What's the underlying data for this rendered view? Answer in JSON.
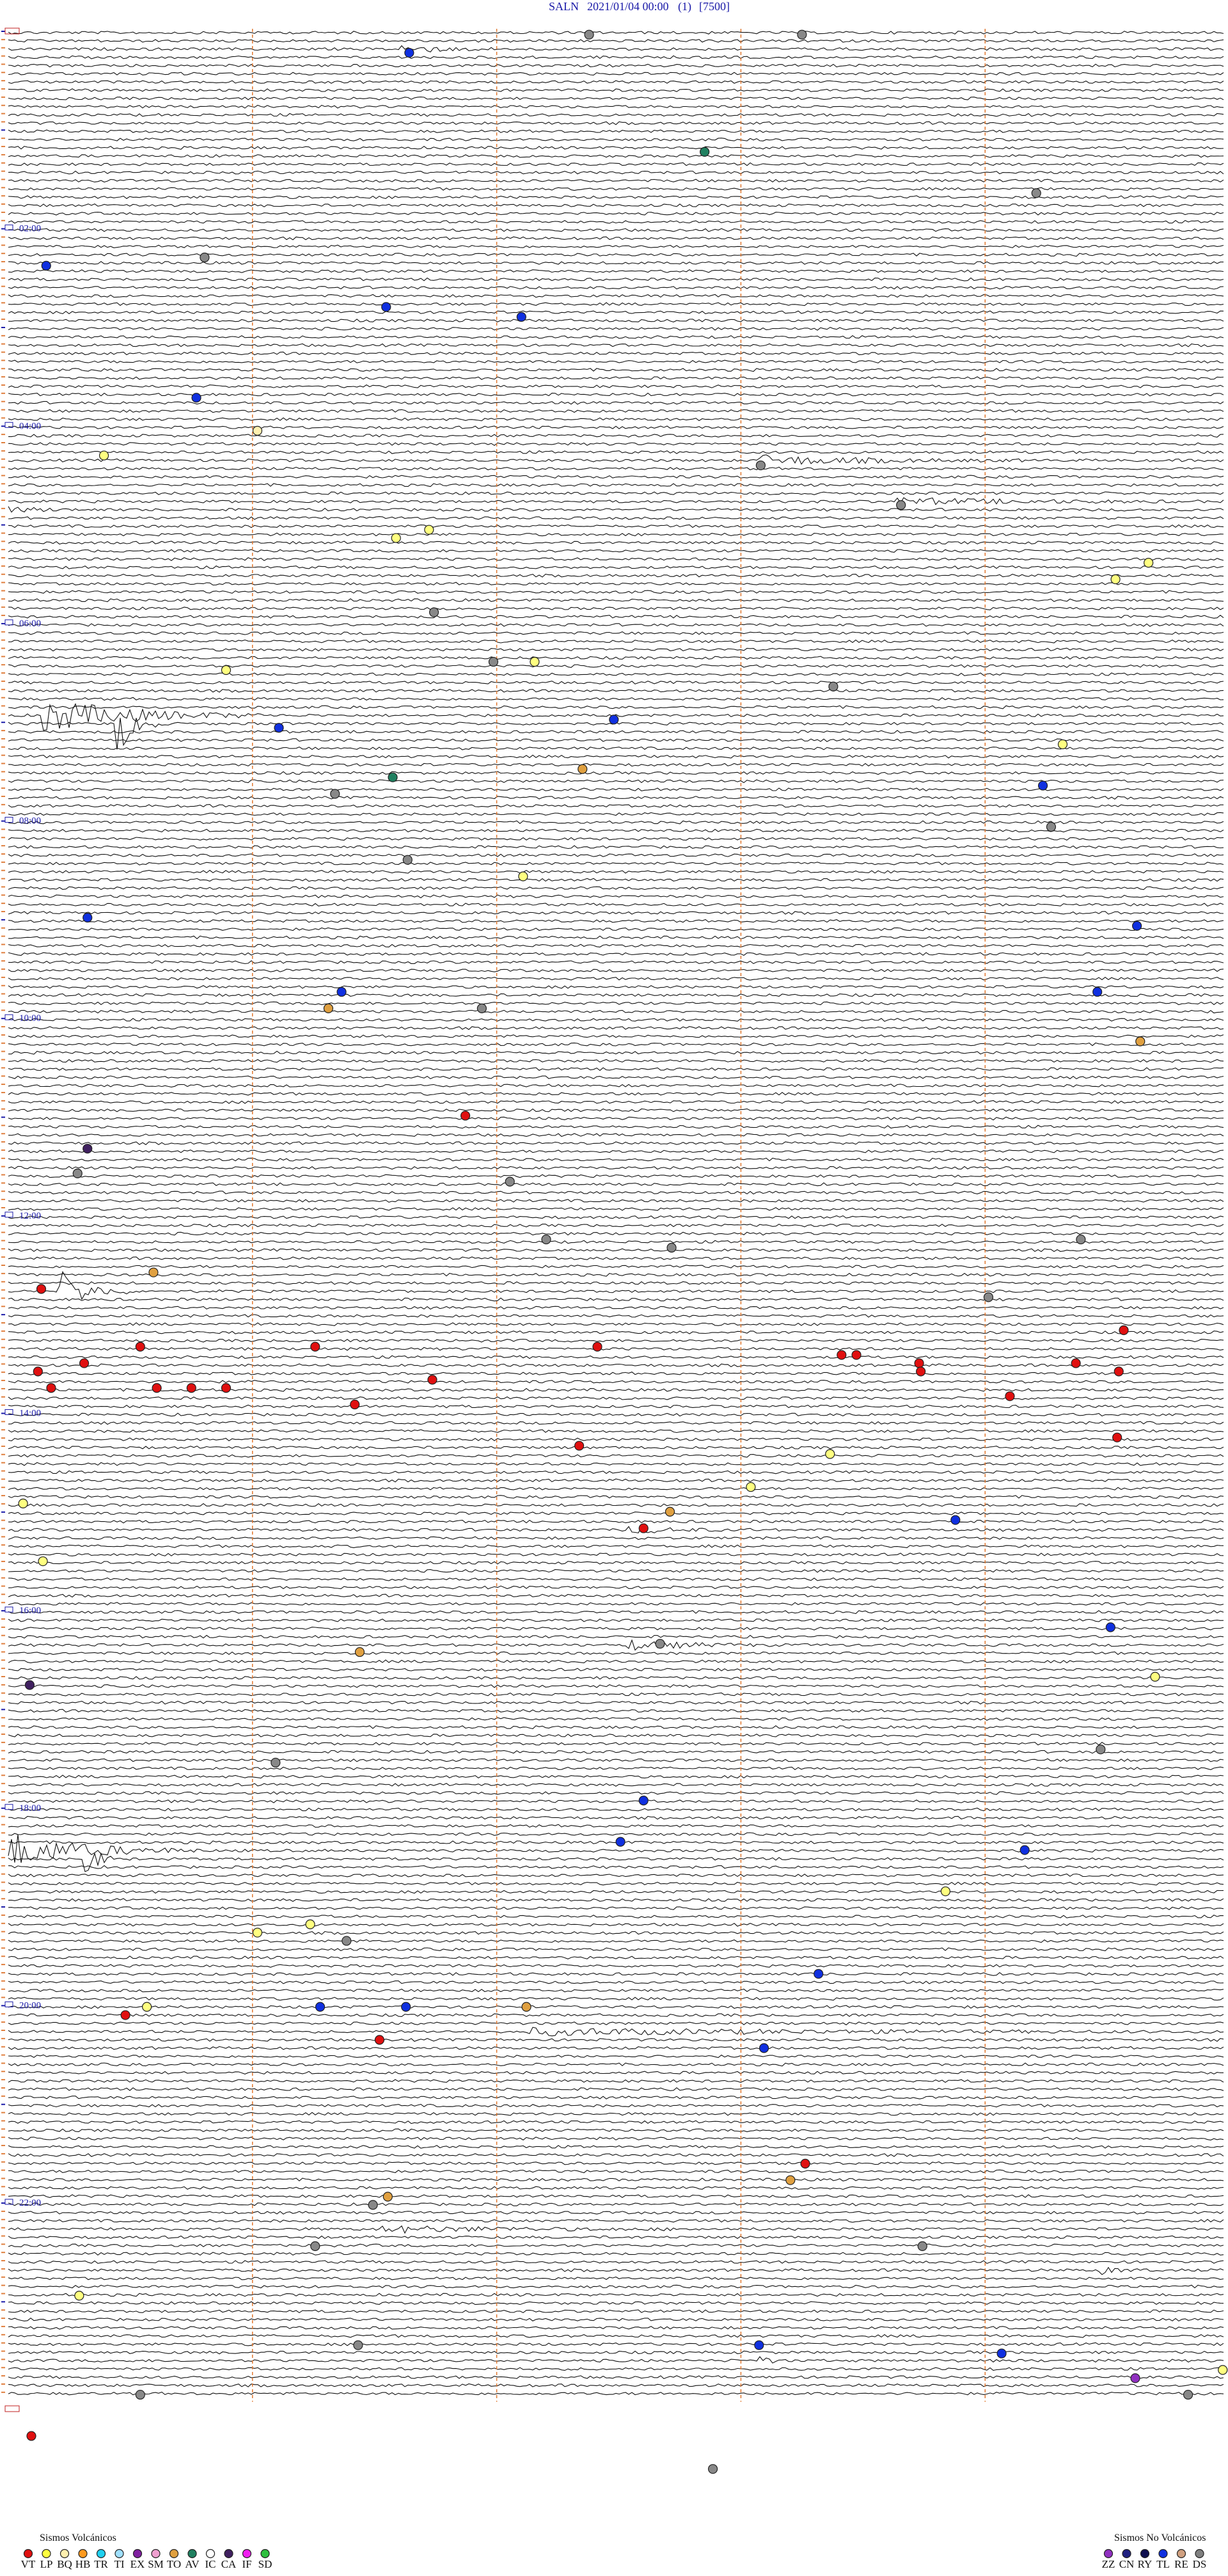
{
  "header": {
    "station": "SALN",
    "datetime": "2021/01/04 00:00",
    "channel": "(1)",
    "scale": "[7500]"
  },
  "hour_labels": [
    "02:00",
    "04:00",
    "06:00",
    "08:00",
    "10:00",
    "12:00",
    "14:00",
    "16:00",
    "18:00",
    "20:00",
    "22:00"
  ],
  "legend_volcanic": {
    "title": "Sismos Volcánicos",
    "items": [
      {
        "code": "VT",
        "color": "#e01010"
      },
      {
        "code": "LP",
        "color": "#ffff40"
      },
      {
        "code": "BQ",
        "color": "#fff0b0"
      },
      {
        "code": "HB",
        "color": "#ff9a20"
      },
      {
        "code": "TR",
        "color": "#20d0f0"
      },
      {
        "code": "TI",
        "color": "#a0e0ff"
      },
      {
        "code": "EX",
        "color": "#8020a0"
      },
      {
        "code": "SM",
        "color": "#f0a0d0"
      },
      {
        "code": "TO",
        "color": "#e0a040"
      },
      {
        "code": "AV",
        "color": "#208060"
      },
      {
        "code": "IC",
        "color": "#ffffff"
      },
      {
        "code": "CA",
        "color": "#402060"
      },
      {
        "code": "IF",
        "color": "#f020f0"
      },
      {
        "code": "SD",
        "color": "#30c040"
      }
    ]
  },
  "legend_non_volcanic": {
    "title": "Sismos No Volcánicos",
    "items": [
      {
        "code": "ZZ",
        "color": "#9030c0"
      },
      {
        "code": "CN",
        "color": "#202080"
      },
      {
        "code": "RY",
        "color": "#101050"
      },
      {
        "code": "TL",
        "color": "#1030e0"
      },
      {
        "code": "RE",
        "color": "#d0a080"
      },
      {
        "code": "DS",
        "color": "#808080"
      }
    ]
  }
}
